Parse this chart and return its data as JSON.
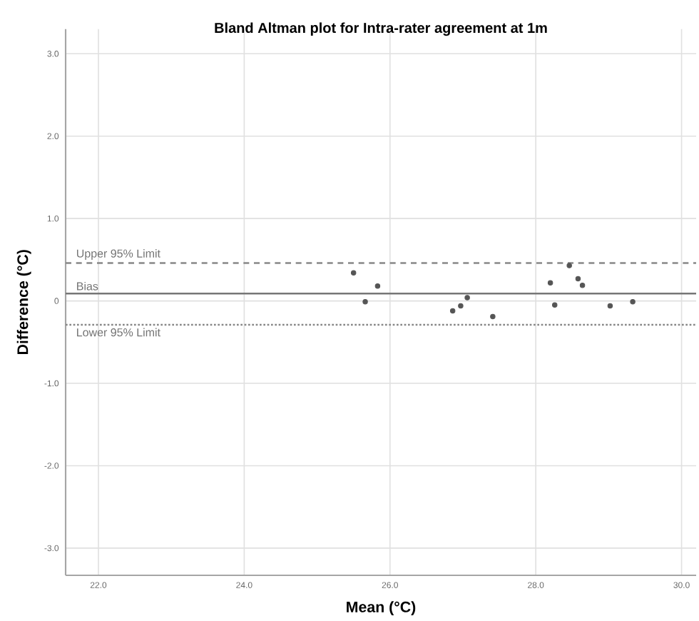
{
  "chart_data": {
    "type": "scatter",
    "title": "Bland Altman plot for Intra-rater agreement at 1m",
    "xlabel": "Mean (°C)",
    "ylabel": "Difference (°C)",
    "series": [
      {
        "color": "#555555",
        "x": [
          25.5,
          25.66,
          25.83,
          26.86,
          26.97,
          27.06,
          27.41,
          28.2,
          28.26,
          28.46,
          28.58,
          28.64,
          29.02,
          29.33
        ],
        "values": [
          0.34,
          -0.01,
          0.18,
          -0.12,
          -0.06,
          0.04,
          -0.19,
          0.22,
          -0.05,
          0.43,
          0.27,
          0.19,
          -0.06,
          -0.01
        ]
      }
    ],
    "xlim": [
      21.55,
      30.2
    ],
    "ylim": [
      -3.33,
      3.3
    ],
    "xticks": [
      {
        "value": 22,
        "label": "22.0"
      },
      {
        "value": 24,
        "label": "24.0"
      },
      {
        "value": 26,
        "label": "26.0"
      },
      {
        "value": 28,
        "label": "28.0"
      },
      {
        "value": 30,
        "label": "30.0"
      }
    ],
    "yticks": [
      {
        "value": -3,
        "label": "-3.0"
      },
      {
        "value": -2,
        "label": "-2.0"
      },
      {
        "value": -1,
        "label": "-1.0"
      },
      0,
      {
        "value": 1,
        "label": "1.0"
      },
      {
        "value": 2,
        "label": "2.0"
      },
      {
        "value": 3,
        "label": "3.0"
      }
    ],
    "ref_lines": [
      {
        "axis": "y",
        "value": 0.46,
        "label": "Upper 95% Limit",
        "color": "#888888",
        "line_style": "dashed"
      },
      {
        "axis": "y",
        "value": 0.09,
        "label": "Bias",
        "color": "#777777",
        "line_style": "solid"
      },
      {
        "axis": "y",
        "value": -0.29,
        "label": "Lower 95% Limit",
        "color": "#888888",
        "line_style": "dotted"
      }
    ],
    "grid": true,
    "marker": "circle"
  }
}
